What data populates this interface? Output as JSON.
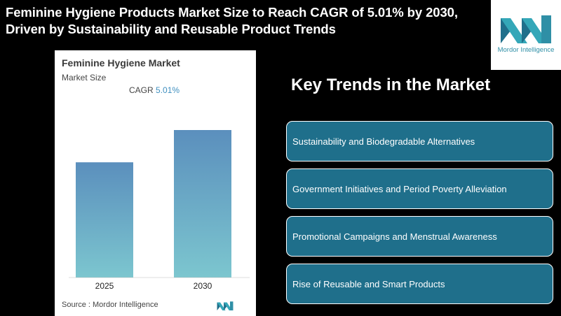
{
  "headline": "Feminine Hygiene Products Market Size to Reach CAGR of 5.01% by 2030, Driven by Sustainability and Reusable Product Trends",
  "logo": {
    "text": "Mordor Intelligence",
    "icon": "mordor-intelligence-logo"
  },
  "chart": {
    "title": "Feminine Hygiene Market",
    "subtitle": "Market Size",
    "cagr_label": "CAGR",
    "cagr_value": "5.01%",
    "source": "Source :  Mordor Intelligence"
  },
  "chart_data": {
    "type": "bar",
    "title": "Feminine Hygiene Market",
    "ylabel": "Market Size",
    "categories": [
      "2025",
      "2030"
    ],
    "values": [
      1.0,
      1.28
    ],
    "ylim": [
      0,
      1.28
    ],
    "annotations": [
      "CAGR 5.01%"
    ],
    "gradient": {
      "top": "#5b8fbd",
      "bottom": "#7cc6cf"
    },
    "grid": false,
    "legend": "none"
  },
  "trends": {
    "heading": "Key Trends in the Market",
    "items": [
      "Sustainability and Biodegradable Alternatives",
      "Government Initiatives and Period Poverty Alleviation",
      "Promotional Campaigns and Menstrual Awareness",
      "Rise of Reusable and Smart Products"
    ]
  },
  "colors": {
    "box": "#1f6f8b",
    "accent": "#3f8fbf",
    "logo": "#2f8fa6"
  }
}
